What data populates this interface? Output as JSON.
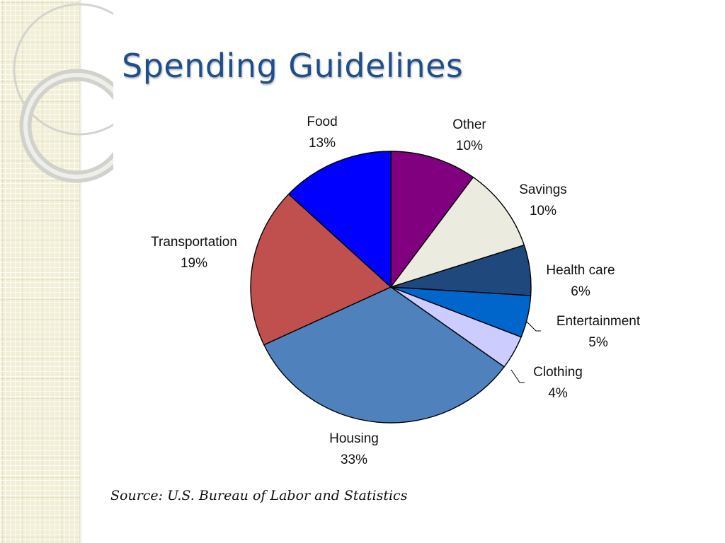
{
  "slide": {
    "title": "Spending Guidelines",
    "source": "Source:  U.S. Bureau of Labor and Statistics"
  },
  "colors": {
    "title": "#1f4e8c",
    "slice_outline": "#000000",
    "side_strip": "#f1efd6"
  },
  "chart_data": {
    "type": "pie",
    "title": "",
    "start_direction": "12 o'clock, clockwise",
    "slices": [
      {
        "name": "Other",
        "value": 10,
        "label": "10%",
        "color": "#800080"
      },
      {
        "name": "Savings",
        "value": 10,
        "label": "10%",
        "color": "#ecebdf"
      },
      {
        "name": "Health care",
        "value": 6,
        "label": "6%",
        "color": "#1f497d"
      },
      {
        "name": "Entertainment",
        "value": 5,
        "label": "5%",
        "color": "#0066cc"
      },
      {
        "name": "Clothing",
        "value": 4,
        "label": "4%",
        "color": "#ccccff"
      },
      {
        "name": "Housing",
        "value": 33,
        "label": "33%",
        "color": "#4f81bd"
      },
      {
        "name": "Transportation",
        "value": 19,
        "label": "19%",
        "color": "#c0504d"
      },
      {
        "name": "Food",
        "value": 13,
        "label": "13%",
        "color": "#0000ff"
      }
    ]
  }
}
